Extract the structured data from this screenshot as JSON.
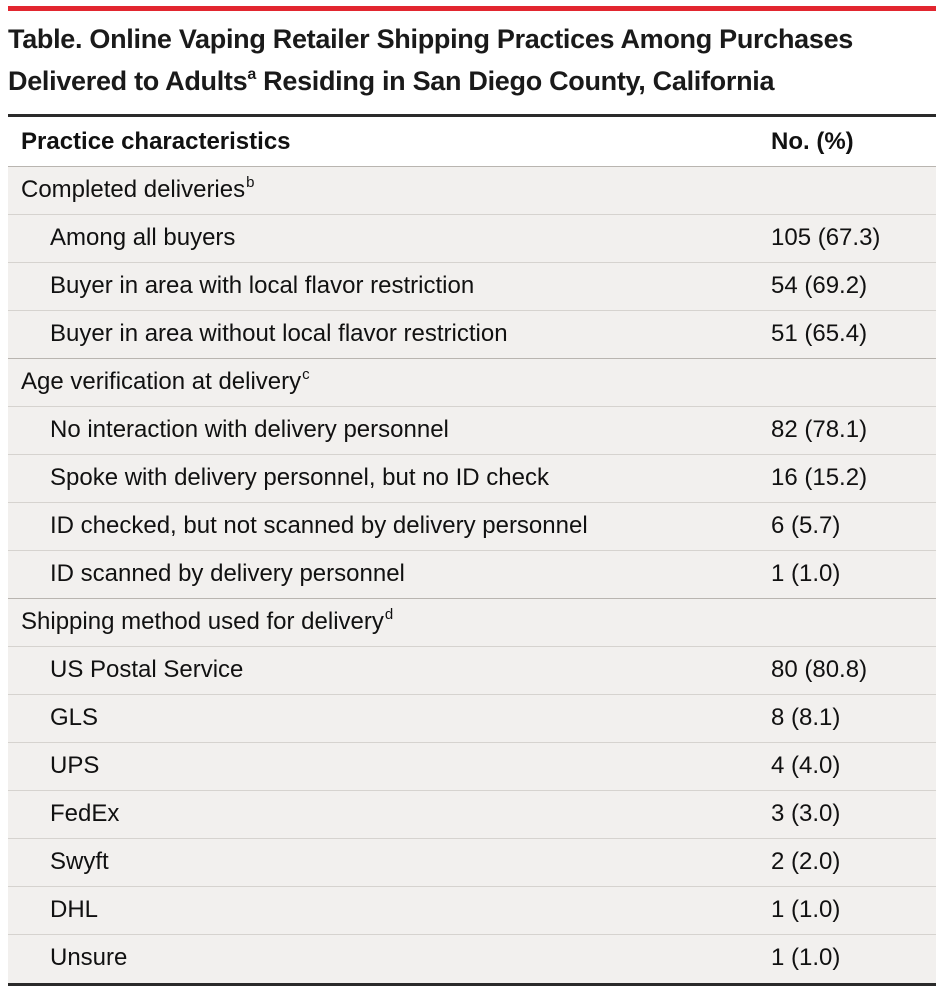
{
  "colors": {
    "accent_rule": "#e2262f",
    "table_background": "#f2f0ee",
    "header_background": "#ffffff"
  },
  "title": {
    "line1": "Table. Online Vaping Retailer Shipping Practices Among Purchases",
    "line2_pre": "Delivered to Adults",
    "line2_sup": "a",
    "line2_post": " Residing in San Diego County, California"
  },
  "table": {
    "header": {
      "label": "Practice characteristics",
      "value": "No. (%)"
    },
    "groups": [
      {
        "label": "Completed deliveries",
        "sup": "b",
        "rows": [
          {
            "label": "Among all buyers",
            "value": "105 (67.3)"
          },
          {
            "label": "Buyer in area with local flavor restriction",
            "value": "54 (69.2)"
          },
          {
            "label": "Buyer in area without local flavor restriction",
            "value": "51 (65.4)"
          }
        ]
      },
      {
        "label": "Age verification at delivery",
        "sup": "c",
        "rows": [
          {
            "label": "No interaction with delivery personnel",
            "value": "82 (78.1)"
          },
          {
            "label": "Spoke with delivery personnel, but no ID check",
            "value": "16 (15.2)"
          },
          {
            "label": "ID checked, but not scanned by delivery personnel",
            "value": "6 (5.7)"
          },
          {
            "label": "ID scanned by delivery personnel",
            "value": "1 (1.0)"
          }
        ]
      },
      {
        "label": "Shipping method used for delivery",
        "sup": "d",
        "rows": [
          {
            "label": "US Postal Service",
            "value": "80 (80.8)"
          },
          {
            "label": "GLS",
            "value": "8 (8.1)"
          },
          {
            "label": "UPS",
            "value": "4 (4.0)"
          },
          {
            "label": "FedEx",
            "value": "3 (3.0)"
          },
          {
            "label": "Swyft",
            "value": "2 (2.0)"
          },
          {
            "label": "DHL",
            "value": "1 (1.0)"
          },
          {
            "label": "Unsure",
            "value": "1 (1.0)"
          }
        ]
      }
    ]
  }
}
